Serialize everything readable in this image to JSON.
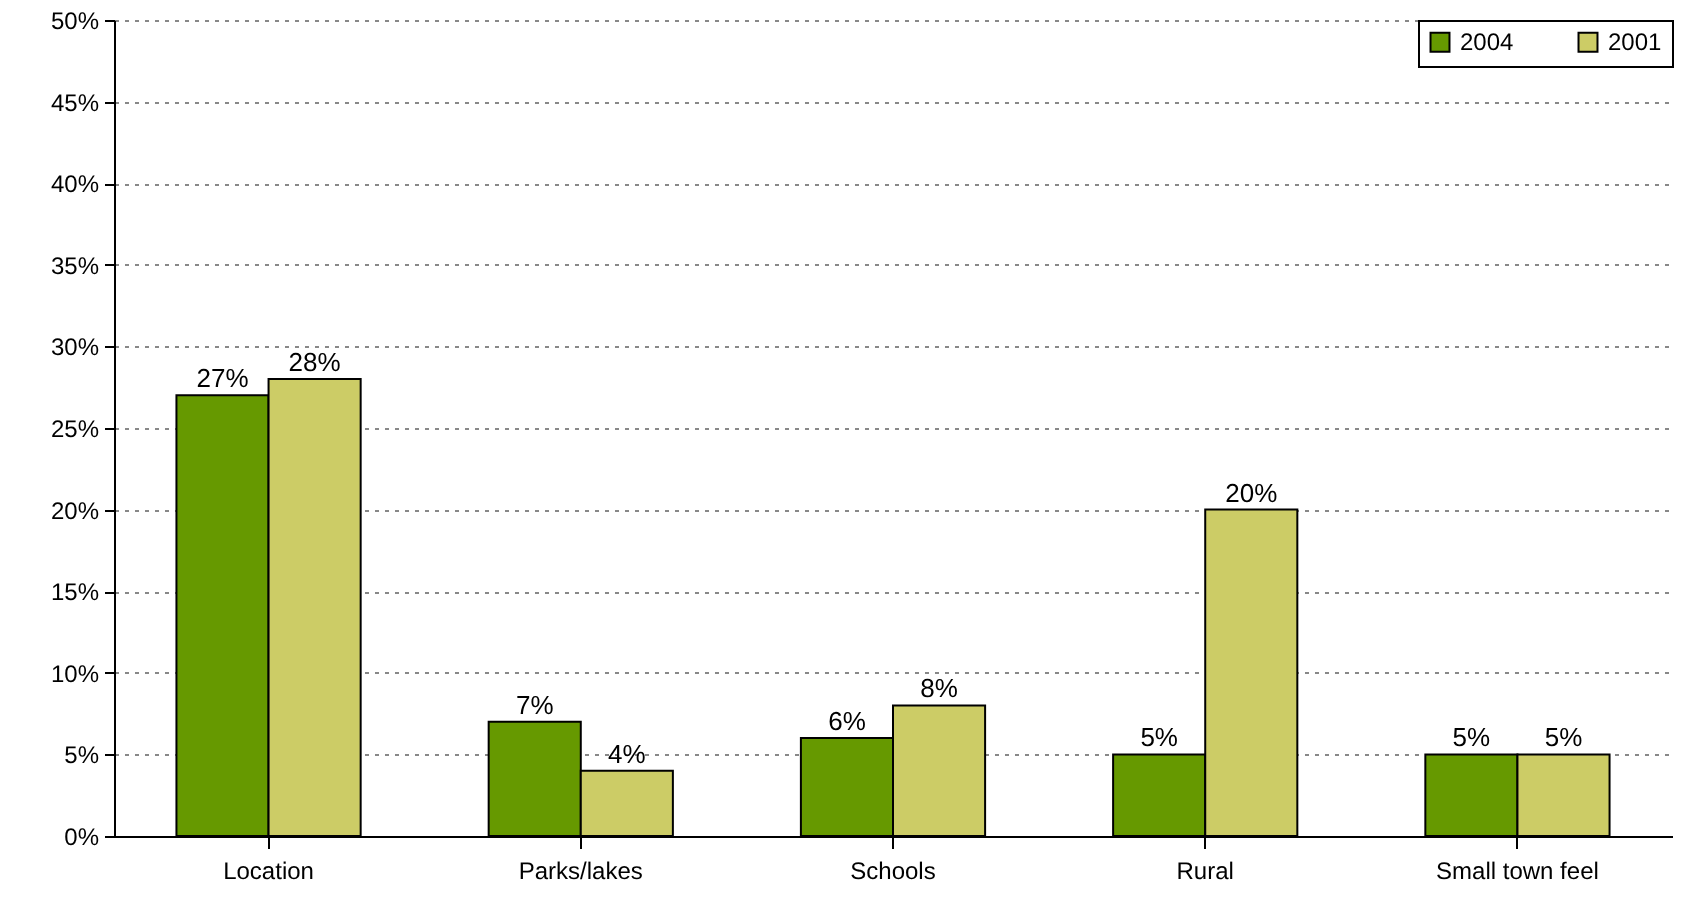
{
  "chart_data": {
    "type": "bar",
    "categories": [
      "Location",
      "Parks/lakes",
      "Schools",
      "Rural",
      "Small town feel"
    ],
    "series": [
      {
        "name": "2004",
        "color": "#669900",
        "values": [
          27,
          7,
          6,
          5,
          5
        ],
        "value_labels": [
          "27%",
          "7%",
          "6%",
          "5%",
          "5%"
        ]
      },
      {
        "name": "2001",
        "color": "#cccc66",
        "values": [
          28,
          4,
          8,
          20,
          5
        ],
        "value_labels": [
          "28%",
          "4%",
          "8%",
          "20%",
          "5%"
        ]
      }
    ],
    "ylim": [
      0,
      50
    ],
    "yticks": [
      {
        "value": 0,
        "label": "0%"
      },
      {
        "value": 5,
        "label": "5%"
      },
      {
        "value": 10,
        "label": "10%"
      },
      {
        "value": 15,
        "label": "15%"
      },
      {
        "value": 20,
        "label": "20%"
      },
      {
        "value": 25,
        "label": "25%"
      },
      {
        "value": 30,
        "label": "30%"
      },
      {
        "value": 35,
        "label": "35%"
      },
      {
        "value": 40,
        "label": "40%"
      },
      {
        "value": 45,
        "label": "45%"
      },
      {
        "value": 50,
        "label": "50%"
      }
    ],
    "grid": "y",
    "legend": "top right"
  }
}
